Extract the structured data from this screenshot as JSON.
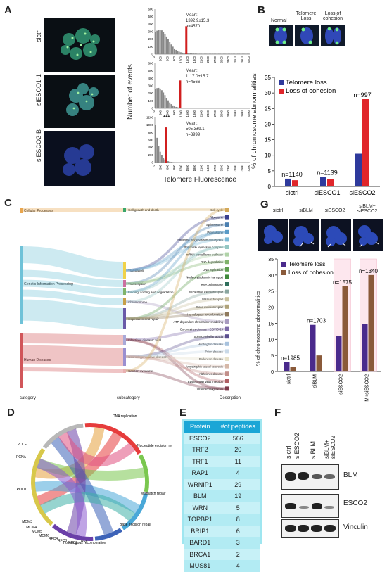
{
  "panels": {
    "A": "A",
    "B": "B",
    "C": "C",
    "D": "D",
    "E": "E",
    "F": "F",
    "G": "G"
  },
  "panelA": {
    "row_labels": [
      "sictrl",
      "siESCO1-1",
      "siESCO2-B"
    ],
    "ylabel": "Number of events",
    "xlabel": "Telomere Fluorescence",
    "xticks": [
      "0",
      "300",
      "600",
      "900",
      "1200",
      "1500",
      "1800",
      "2100",
      "2400",
      "2700",
      "3000",
      "3300",
      "3600",
      "3900",
      "4200"
    ],
    "histograms": [
      {
        "yticks": [
          "0",
          "100",
          "200",
          "300",
          "400",
          "500",
          "600"
        ],
        "mean": "Mean:",
        "value": "1392.9±15.3",
        "n": "n=4570",
        "stars": ""
      },
      {
        "yticks": [
          "0",
          "100",
          "200",
          "300",
          "400",
          "500",
          "600"
        ],
        "mean": "Mean:",
        "value": "1117.0±15.7",
        "n": "n=4566",
        "stars": ""
      },
      {
        "yticks": [
          "0",
          "200",
          "400",
          "600",
          "800",
          "1000",
          "1200"
        ],
        "mean": "Mean:",
        "value": "505.3±9.1",
        "n": "n=3999",
        "stars": "***"
      }
    ]
  },
  "panelB": {
    "image_labels": [
      "Normal",
      "Telomere Loss",
      "Loss of cohesion"
    ],
    "legend": [
      "Telomere loss",
      "Loss of cohesion"
    ]
  },
  "panelC": {
    "col_labels": [
      "category",
      "subcategory",
      "Description"
    ],
    "categories": [
      "Cellular Processes",
      "Genetic Information Processing",
      "Human Diseases"
    ],
    "subcategories": [
      "Cell growth and death",
      "Translation",
      "Transcription",
      "Folding, sorting and degradation",
      "Chromosome",
      "Replication and repair",
      "Infectious disease: viral",
      "Neurodegenerative disease",
      "Cancer: overview"
    ],
    "descriptions": [
      "Cell cycle",
      "Ribosome",
      "Spliceosome",
      "Proteasome",
      "Ribosome biogenesis in eukaryotes",
      "Polycomb repressive complex",
      "mRNA surveillance pathway",
      "RNA degradation",
      "DNA replication",
      "Nucleocytoplasmic transport",
      "RNA polymerase",
      "Nucleotide excision repair",
      "Mismatch repair",
      "Base excision repair",
      "Homologous recombination",
      "ATP-dependent chromatin remodeling",
      "Coronavirus disease - COVID-19",
      "Spinocerebellar ataxia",
      "Huntington disease",
      "Prion disease",
      "Parkinson disease",
      "Amyotrophic lateral sclerosis",
      "Alzheimer disease",
      "Epstein-Barr virus infection",
      "Viral carcinogenesis"
    ],
    "desc_colors": [
      "#d4a95a",
      "#3a3f8f",
      "#4a7fb0",
      "#5a9bc7",
      "#7ab9d6",
      "#94c7c3",
      "#b0d3a8",
      "#7fb36a",
      "#5e9e4f",
      "#3f8a3c",
      "#2f6f5c",
      "#8aa6a0",
      "#c9c19d",
      "#b0a37a",
      "#8f7a5d",
      "#a89bc0",
      "#7d6aa8",
      "#5b4f8f",
      "#a8c2dd",
      "#c9d9e8",
      "#e6e0c8",
      "#d6b8a8",
      "#c28f8a",
      "#b05f64",
      "#7e3c4c"
    ]
  },
  "panelD": {
    "labels": [
      "DNA replication",
      "Nucleotide excision repair",
      "Mismatch repair",
      "Base excision repair",
      "Homologous recombination",
      "RFC1",
      "RFC2",
      "RFC3",
      "RFC4",
      "MCM6",
      "MCM5",
      "MCM4",
      "MCM3",
      "POLD1",
      "PCNA",
      "POLE"
    ]
  },
  "panelE": {
    "headers": [
      "Protein",
      "#of  peptides"
    ],
    "rows": [
      [
        "ESCO2",
        "566"
      ],
      [
        "TRF2",
        "20"
      ],
      [
        "TRF1",
        "11"
      ],
      [
        "RAP1",
        "4"
      ],
      [
        "WRNIP1",
        "29"
      ],
      [
        "BLM",
        "19"
      ],
      [
        "WRN",
        "5"
      ],
      [
        "TOPBP1",
        "8"
      ],
      [
        "BRIP1",
        "6"
      ],
      [
        "BARD1",
        "3"
      ],
      [
        "BRCA1",
        "2"
      ],
      [
        "MUS81",
        "4"
      ]
    ]
  },
  "panelF": {
    "lanes": [
      "sictrl",
      "siESCO2",
      "siBLM",
      "siBLM+ siESCO2"
    ],
    "blots": [
      "BLM",
      "ESCO2",
      "Vinculin"
    ]
  },
  "panelG": {
    "image_labels": [
      "sictrl",
      "siBLM",
      "siESCO2",
      "siBLM+ siESCO2"
    ]
  },
  "chart_data": [
    {
      "type": "bar",
      "title": "",
      "ylabel": "% of chromosome abnormalities",
      "ylim": [
        0,
        35
      ],
      "yticks": [
        0,
        5,
        10,
        15,
        20,
        25,
        30,
        35
      ],
      "categories": [
        "sictrl",
        "siESCO1",
        "siESCO2"
      ],
      "series": [
        {
          "name": "Telomere loss",
          "color": "#2e3a9c",
          "values": [
            2.5,
            3.0,
            10.5
          ]
        },
        {
          "name": "Loss of cohesion",
          "color": "#e0262b",
          "values": [
            2.0,
            2.3,
            28.0
          ]
        }
      ],
      "annotations": [
        "n=1140",
        "n=1139",
        "n=997"
      ],
      "legend": "top-left",
      "grid": false
    },
    {
      "type": "bar",
      "title": "",
      "ylabel": "% of chromosome abnormalities",
      "ylim": [
        0,
        35
      ],
      "yticks": [
        0,
        5,
        10,
        15,
        20,
        25,
        30,
        35
      ],
      "categories": [
        "sictrl",
        "siBLM",
        "siESCO2",
        "siBLM+siESCO2"
      ],
      "series": [
        {
          "name": "Telomere loss",
          "color": "#4a2a8c",
          "values": [
            3.0,
            14.5,
            11.0,
            14.7
          ]
        },
        {
          "name": "Loss of cohesion",
          "color": "#8a5a3a",
          "values": [
            1.5,
            5.0,
            26.5,
            30.0
          ]
        }
      ],
      "annotations": [
        "n=1985",
        "n=1703",
        "n=1575",
        "n=1340"
      ],
      "legend": "top-left",
      "grid": false
    }
  ]
}
